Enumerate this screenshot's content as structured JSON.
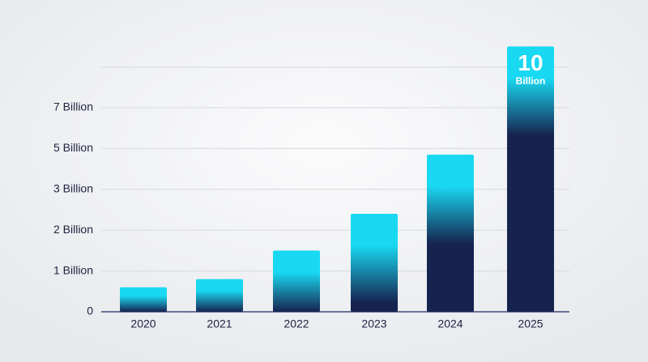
{
  "chart_data": {
    "type": "bar",
    "categories": [
      "2020",
      "2021",
      "2022",
      "2023",
      "2024",
      "2025"
    ],
    "values": [
      0.6,
      0.8,
      1.5,
      2.4,
      4.7,
      10
    ],
    "value_labels": [
      null,
      null,
      null,
      null,
      null,
      "10 Billion"
    ],
    "colors": {
      "top": "#19d9f2",
      "bottom": "#16234f"
    },
    "ylim": [
      0,
      10
    ],
    "yticks": [
      0,
      {
        "value": 1,
        "label": "1 Billion"
      },
      {
        "value": 2,
        "label": "2 Billion"
      },
      {
        "value": 3,
        "label": "3 Billion"
      },
      {
        "value": 5,
        "label": "5 Billion"
      },
      {
        "value": 7,
        "label": "7 Billion"
      }
    ],
    "grid": true
  }
}
